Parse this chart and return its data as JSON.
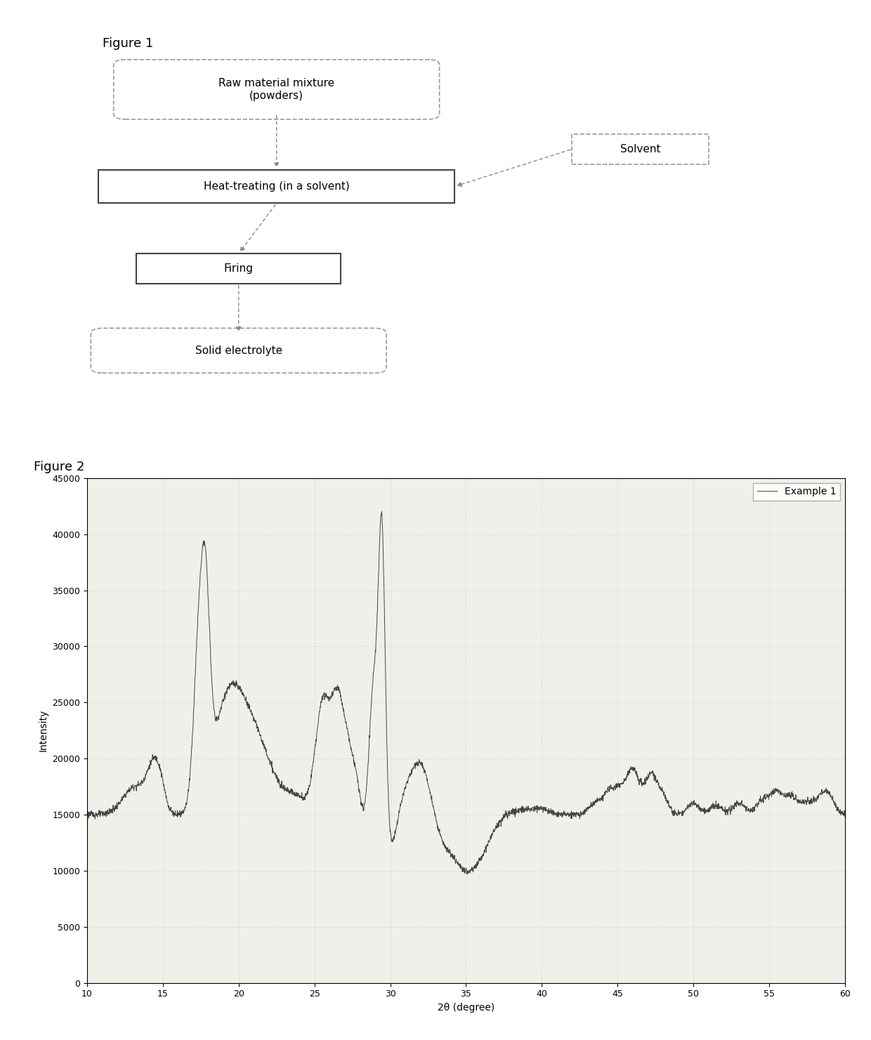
{
  "fig1_title": "Figure 1",
  "fig2_title": "Figure 2",
  "xrd": {
    "xlabel": "2θ (degree)",
    "ylabel": "Intensity",
    "legend": "Example 1",
    "xlim": [
      10,
      60
    ],
    "ylim": [
      0,
      45000
    ],
    "yticks": [
      0,
      5000,
      10000,
      15000,
      20000,
      25000,
      30000,
      35000,
      40000,
      45000
    ],
    "xticks": [
      10,
      15,
      20,
      25,
      30,
      35,
      40,
      45,
      50,
      55,
      60
    ],
    "line_color": "#444444",
    "grid_color": "#c8c8c8",
    "background_color": "#f0f0eb"
  }
}
